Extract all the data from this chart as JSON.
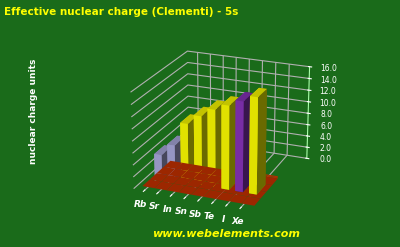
{
  "title": "Effective nuclear charge (Clementi) - 5s",
  "ylabel": "nuclear charge units",
  "elements": [
    "Rb",
    "Sr",
    "In",
    "Sn",
    "Sb",
    "Te",
    "I",
    "Xe"
  ],
  "values": [
    4.0,
    6.0,
    10.0,
    11.6,
    13.0,
    14.0,
    15.0,
    16.0
  ],
  "bar_colors": [
    "#aaaadd",
    "#aaaadd",
    "#ffff00",
    "#ffff00",
    "#ffff00",
    "#ffff00",
    "#8833bb",
    "#ffff00"
  ],
  "bg_color": "#1a6b1a",
  "title_color": "#ffff00",
  "label_color": "#ffffff",
  "grid_color": "#aaffaa",
  "floor_color": "#cc3300",
  "website": "www.webelements.com",
  "website_color": "#ffff00",
  "ylim": [
    0.0,
    16.0
  ],
  "yticks": [
    0.0,
    2.0,
    4.0,
    6.0,
    8.0,
    10.0,
    12.0,
    14.0,
    16.0
  ]
}
